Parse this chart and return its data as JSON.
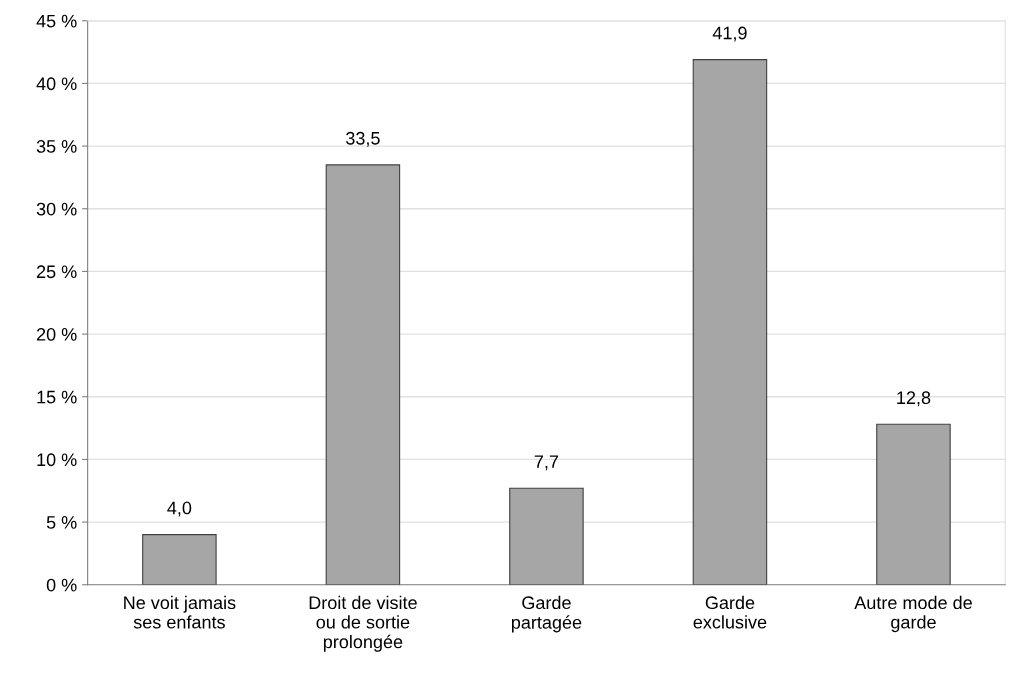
{
  "chart_data": {
    "type": "bar",
    "categories": [
      "Ne voit jamais\nses enfants",
      "Droit de visite\nou de sortie\nprolongée",
      "Garde\npartagée",
      "Garde\nexclusive",
      "Autre mode de\ngarde"
    ],
    "values": [
      4.0,
      33.5,
      7.7,
      41.9,
      12.8
    ],
    "value_labels": [
      "4,0",
      "33,5",
      "7,7",
      "41,9",
      "12,8"
    ],
    "color": "#a6a6a6",
    "ylim": [
      0,
      45
    ],
    "yticks": [
      {
        "value": 0,
        "label": "0 %"
      },
      {
        "value": 5,
        "label": "5 %"
      },
      {
        "value": 10,
        "label": "10 %"
      },
      {
        "value": 15,
        "label": "15 %"
      },
      {
        "value": 20,
        "label": "20 %"
      },
      {
        "value": 25,
        "label": "25 %"
      },
      {
        "value": 30,
        "label": "30 %"
      },
      {
        "value": 35,
        "label": "35 %"
      },
      {
        "value": 40,
        "label": "40 %"
      },
      {
        "value": 45,
        "label": "45 %"
      }
    ],
    "grid": "y",
    "legend": false
  }
}
